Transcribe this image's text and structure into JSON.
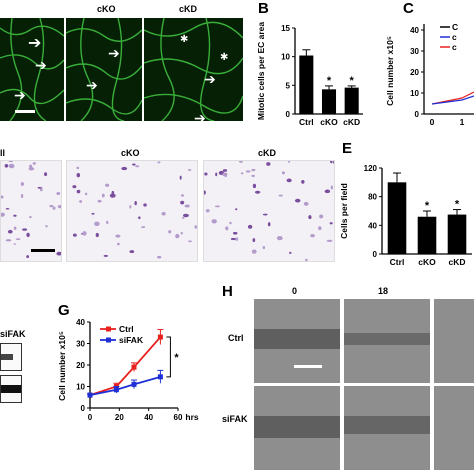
{
  "panels": {
    "A": {
      "headers": [
        "cKO",
        "cKD"
      ]
    },
    "B": {
      "letter": "B",
      "ylabel": "Mitotic cells per EC area",
      "chart": {
        "type": "bar",
        "categories": [
          "Ctrl",
          "cKO",
          "cKD"
        ],
        "values": [
          10.2,
          4.3,
          4.6
        ],
        "errors": [
          1.0,
          0.6,
          0.3
        ],
        "ylim": [
          0,
          15
        ],
        "yticks": [
          "0",
          "5",
          "10",
          "15"
        ],
        "sig": [
          "",
          "*",
          "*"
        ]
      }
    },
    "C": {
      "letter": "C",
      "ylabel": "Cell number x10⁵",
      "yticks": [
        "0",
        "10",
        "20",
        "30",
        "40"
      ],
      "xticks": [
        "0",
        "1"
      ],
      "legend": [
        "C",
        "c",
        "c"
      ]
    },
    "D": {
      "headers": [
        "ll",
        "cKO",
        "cKD"
      ]
    },
    "E": {
      "letter": "E",
      "ylabel": "Cells per field",
      "chart": {
        "type": "bar",
        "categories": [
          "Ctrl",
          "cKO",
          "cKD"
        ],
        "values": [
          100,
          52,
          55
        ],
        "errors": [
          13,
          8,
          7
        ],
        "ylim": [
          0,
          120
        ],
        "yticks": [
          "0",
          "40",
          "80",
          "120"
        ],
        "sig": [
          "",
          "*",
          "*"
        ]
      }
    },
    "F": {
      "label": "siFAK"
    },
    "G": {
      "letter": "G",
      "ylabel": "Cell number x10⁵",
      "xlabel": "hrs",
      "sig": "*",
      "chart": {
        "type": "line",
        "x": [
          0,
          18,
          30,
          48
        ],
        "xlim": [
          0,
          60
        ],
        "ylim": [
          0,
          40
        ],
        "xticks": [
          "0",
          "20",
          "40",
          "60"
        ],
        "yticks": [
          "0",
          "10",
          "20",
          "30",
          "40"
        ],
        "series": [
          {
            "name": "Ctrl",
            "color": "#e8201e",
            "values": [
              6,
              10,
              19,
              33
            ],
            "errors": [
              0.5,
              1.5,
              2.0,
              3.5
            ]
          },
          {
            "name": "siFAK",
            "color": "#1f2fd6",
            "values": [
              6,
              8.5,
              11,
              14.5
            ],
            "errors": [
              0.5,
              1.5,
              2.0,
              3.0
            ]
          }
        ]
      }
    },
    "H": {
      "letter": "H",
      "time_headers": [
        "0",
        "18"
      ],
      "row_labels": [
        "Ctrl",
        "siFAK"
      ]
    }
  },
  "chart_data": [
    {
      "type": "bar",
      "categories": [
        "Ctrl",
        "cKO",
        "cKD"
      ],
      "values": [
        10.2,
        4.3,
        4.6
      ],
      "ylabel": "Mitotic cells per EC area",
      "ylim": [
        0,
        15
      ]
    },
    {
      "type": "bar",
      "categories": [
        "Ctrl",
        "cKO",
        "cKD"
      ],
      "values": [
        100,
        52,
        55
      ],
      "ylabel": "Cells per field",
      "ylim": [
        0,
        120
      ]
    },
    {
      "type": "line",
      "x": [
        0,
        18,
        30,
        48
      ],
      "xlabel": "hrs",
      "ylabel": "Cell number x10⁵",
      "series": [
        {
          "name": "Ctrl",
          "values": [
            6,
            10,
            19,
            33
          ]
        },
        {
          "name": "siFAK",
          "values": [
            6,
            8.5,
            11,
            14.5
          ]
        }
      ]
    }
  ]
}
